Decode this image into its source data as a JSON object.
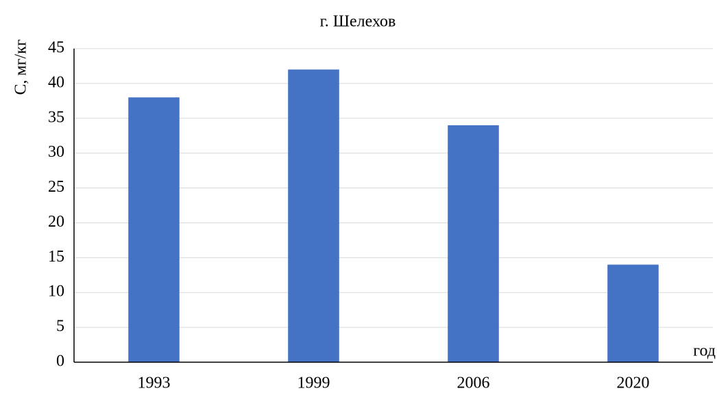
{
  "chart_data": {
    "type": "bar",
    "title": "г. Шелехов",
    "y_label": "С, мг/кг",
    "x_label": "год",
    "categories": [
      "1993",
      "1999",
      "2006",
      "2020"
    ],
    "values": [
      38,
      42,
      34,
      14
    ],
    "color": "#4472c4",
    "ylim": [
      0,
      45
    ],
    "yticks": [
      0,
      5,
      10,
      15,
      20,
      25,
      30,
      35,
      40,
      45
    ],
    "grid": true
  }
}
